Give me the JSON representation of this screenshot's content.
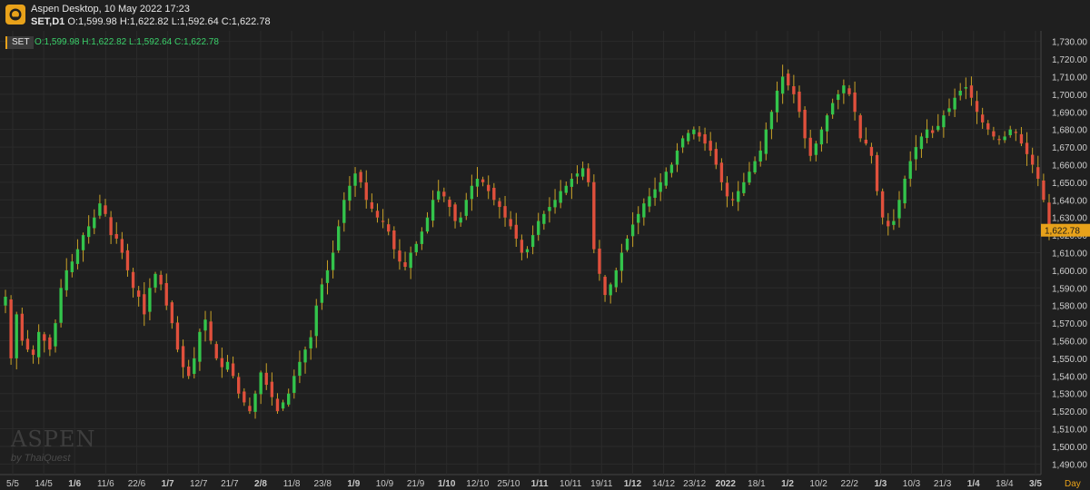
{
  "header": {
    "app_title": "Aspen Desktop, 10 May 2022 17:23",
    "symbol_tf": "SET,D1",
    "ohlc": "O:1,599.98 H:1,622.82 L:1,592.64 C:1,622.78"
  },
  "legend": {
    "symbol": "SET",
    "ohlc": "O:1,599.98  H:1,622.82  L:1,592.64  C:1,622.78"
  },
  "watermark": {
    "brand": "ASPEN",
    "sub": "by ThaiQuest"
  },
  "colors": {
    "up": "#33c44b",
    "down": "#e0503c",
    "wick": "#c9a227",
    "grid": "#2b2b2b",
    "price_tag": "#e8a21a"
  },
  "icons": {
    "logo": "aspen-logo-icon"
  },
  "chart_data": {
    "type": "candlestick",
    "y_ticks": [
      "1,730.00",
      "1,720.00",
      "1,710.00",
      "1,700.00",
      "1,690.00",
      "1,680.00",
      "1,670.00",
      "1,660.00",
      "1,650.00",
      "1,640.00",
      "1,630.00",
      "1,620.00",
      "1,610.00",
      "1,600.00",
      "1,590.00",
      "1,580.00",
      "1,570.00",
      "1,560.00",
      "1,550.00",
      "1,540.00",
      "1,530.00",
      "1,520.00",
      "1,510.00",
      "1,500.00",
      "1,490.00"
    ],
    "x_labels": [
      {
        "label": "5/5",
        "bold": false
      },
      {
        "label": "14/5",
        "bold": false
      },
      {
        "label": "1/6",
        "bold": true
      },
      {
        "label": "11/6",
        "bold": false
      },
      {
        "label": "22/6",
        "bold": false
      },
      {
        "label": "1/7",
        "bold": true
      },
      {
        "label": "12/7",
        "bold": false
      },
      {
        "label": "21/7",
        "bold": false
      },
      {
        "label": "2/8",
        "bold": true
      },
      {
        "label": "11/8",
        "bold": false
      },
      {
        "label": "23/8",
        "bold": false
      },
      {
        "label": "1/9",
        "bold": true
      },
      {
        "label": "10/9",
        "bold": false
      },
      {
        "label": "21/9",
        "bold": false
      },
      {
        "label": "1/10",
        "bold": true
      },
      {
        "label": "12/10",
        "bold": false
      },
      {
        "label": "25/10",
        "bold": false
      },
      {
        "label": "1/11",
        "bold": true
      },
      {
        "label": "10/11",
        "bold": false
      },
      {
        "label": "19/11",
        "bold": false
      },
      {
        "label": "1/12",
        "bold": true
      },
      {
        "label": "14/12",
        "bold": false
      },
      {
        "label": "23/12",
        "bold": false
      },
      {
        "label": "2022",
        "bold": true
      },
      {
        "label": "18/1",
        "bold": false
      },
      {
        "label": "1/2",
        "bold": true
      },
      {
        "label": "10/2",
        "bold": false
      },
      {
        "label": "22/2",
        "bold": false
      },
      {
        "label": "1/3",
        "bold": true
      },
      {
        "label": "10/3",
        "bold": false
      },
      {
        "label": "21/3",
        "bold": false
      },
      {
        "label": "1/4",
        "bold": true
      },
      {
        "label": "18/4",
        "bold": false
      },
      {
        "label": "3/5",
        "bold": true
      }
    ],
    "x_unit_label": "Day",
    "y_range": [
      1484,
      1736
    ],
    "last_price": "1,622.78",
    "closes": [
      1585,
      1550,
      1575,
      1560,
      1555,
      1552,
      1565,
      1560,
      1555,
      1570,
      1590,
      1600,
      1605,
      1612,
      1620,
      1625,
      1630,
      1638,
      1632,
      1620,
      1618,
      1610,
      1600,
      1590,
      1585,
      1575,
      1590,
      1598,
      1592,
      1580,
      1570,
      1555,
      1545,
      1540,
      1550,
      1565,
      1572,
      1560,
      1550,
      1545,
      1548,
      1540,
      1530,
      1525,
      1520,
      1530,
      1542,
      1535,
      1528,
      1520,
      1525,
      1530,
      1540,
      1548,
      1555,
      1562,
      1580,
      1592,
      1600,
      1610,
      1625,
      1640,
      1648,
      1655,
      1650,
      1640,
      1635,
      1630,
      1628,
      1622,
      1612,
      1605,
      1602,
      1610,
      1615,
      1622,
      1630,
      1640,
      1645,
      1642,
      1636,
      1628,
      1630,
      1640,
      1648,
      1652,
      1650,
      1645,
      1640,
      1636,
      1630,
      1625,
      1618,
      1610,
      1612,
      1620,
      1628,
      1632,
      1636,
      1640,
      1645,
      1648,
      1652,
      1655,
      1658,
      1650,
      1612,
      1598,
      1586,
      1592,
      1600,
      1610,
      1618,
      1626,
      1632,
      1638,
      1642,
      1646,
      1650,
      1656,
      1660,
      1668,
      1675,
      1678,
      1680,
      1676,
      1672,
      1668,
      1660,
      1650,
      1642,
      1640,
      1645,
      1650,
      1656,
      1662,
      1668,
      1680,
      1690,
      1702,
      1710,
      1705,
      1700,
      1690,
      1675,
      1665,
      1672,
      1680,
      1688,
      1695,
      1700,
      1705,
      1700,
      1690,
      1675,
      1672,
      1665,
      1645,
      1630,
      1625,
      1628,
      1640,
      1652,
      1662,
      1670,
      1676,
      1680,
      1678,
      1682,
      1688,
      1692,
      1698,
      1702,
      1704,
      1698,
      1690,
      1684,
      1680,
      1676,
      1674,
      1676,
      1680,
      1678,
      1672,
      1666,
      1660,
      1652,
      1640,
      1622
    ]
  }
}
